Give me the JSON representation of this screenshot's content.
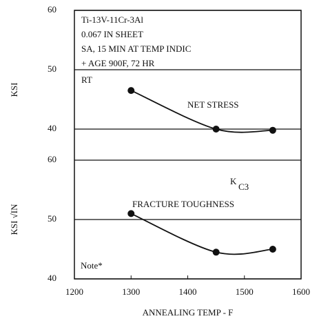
{
  "chart_data": [
    {
      "type": "line",
      "ylabel": "KSI",
      "xlim": [
        1200,
        1600
      ],
      "ylim": [
        40,
        60
      ],
      "yticks": [
        40,
        50,
        60
      ],
      "annotations": [
        "Ti-13V-11Cr-3Al",
        "0.067 IN SHEET",
        "SA, 15 MIN AT TEMP INDIC",
        "+ AGE 900F, 72 HR",
        "RT"
      ],
      "x": [
        1300,
        1450,
        1550
      ],
      "series": [
        {
          "name": "NET STRESS",
          "color": "#111111",
          "values": [
            46.5,
            40,
            39.8
          ]
        }
      ],
      "grid": true
    },
    {
      "type": "line",
      "ylabel": "KSI √IN",
      "xlabel": "ANNEALING TEMP - F",
      "xlim": [
        1200,
        1600
      ],
      "xticks": [
        1200,
        1300,
        1400,
        1500,
        1600
      ],
      "ylim": [
        40,
        60
      ],
      "yticks": [
        40,
        50,
        60
      ],
      "annotations": [
        "K",
        "C3",
        "Note*"
      ],
      "x": [
        1300,
        1450,
        1550
      ],
      "series": [
        {
          "name": "FRACTURE TOUGHNESS",
          "color": "#111111",
          "values": [
            51,
            44.5,
            45
          ]
        }
      ],
      "grid": true
    }
  ]
}
